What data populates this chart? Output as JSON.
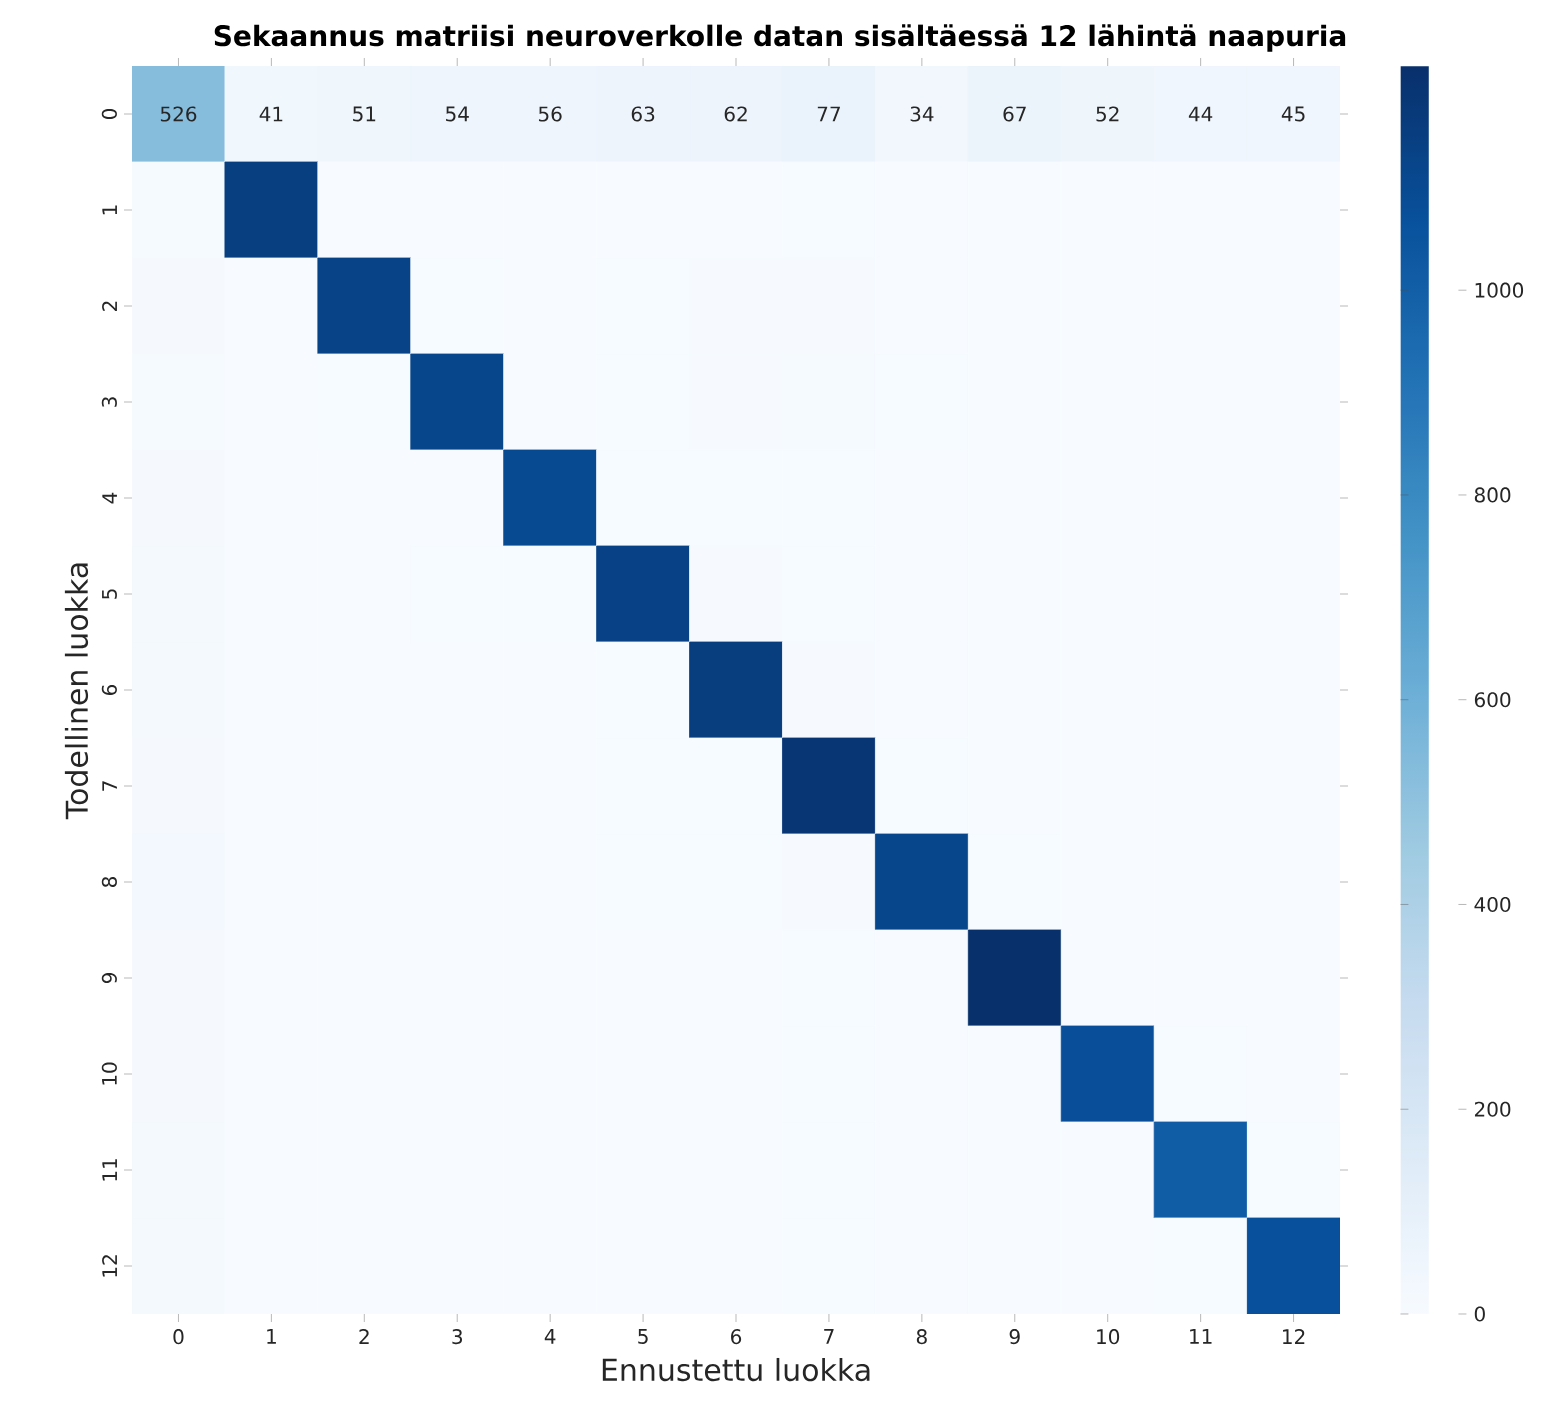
{
  "chart_data": {
    "type": "heatmap",
    "title": "Sekaannus matriisi neuroverkolle datan sisältäessä 12 lähintä naapuria",
    "xlabel": "Ennustettu luokka",
    "ylabel": "Todellinen luokka",
    "categories": [
      "0",
      "1",
      "2",
      "3",
      "4",
      "5",
      "6",
      "7",
      "8",
      "9",
      "10",
      "11",
      "12"
    ],
    "y_categories": [
      "0",
      "1",
      "2",
      "3",
      "4",
      "5",
      "6",
      "7",
      "8",
      "9",
      "10",
      "11",
      "12"
    ],
    "cells": [
      [
        526,
        41,
        51,
        54,
        56,
        63,
        62,
        77,
        34,
        67,
        52,
        44,
        45
      ],
      [
        10,
        1150,
        2,
        2,
        2,
        2,
        2,
        3,
        2,
        2,
        2,
        2,
        2
      ],
      [
        15,
        2,
        1130,
        3,
        2,
        3,
        8,
        8,
        2,
        2,
        2,
        2,
        2
      ],
      [
        12,
        2,
        3,
        1120,
        2,
        3,
        5,
        10,
        3,
        2,
        2,
        2,
        2
      ],
      [
        15,
        2,
        2,
        2,
        1100,
        3,
        3,
        3,
        2,
        2,
        2,
        2,
        2
      ],
      [
        20,
        2,
        2,
        3,
        3,
        1140,
        5,
        3,
        2,
        2,
        2,
        2,
        2
      ],
      [
        20,
        2,
        2,
        2,
        2,
        3,
        1160,
        5,
        2,
        2,
        2,
        2,
        2
      ],
      [
        15,
        2,
        2,
        2,
        2,
        3,
        3,
        1190,
        3,
        2,
        2,
        2,
        2
      ],
      [
        30,
        2,
        2,
        2,
        2,
        3,
        3,
        8,
        1120,
        3,
        2,
        2,
        2
      ],
      [
        15,
        2,
        2,
        2,
        2,
        2,
        2,
        3,
        2,
        1219,
        2,
        2,
        2
      ],
      [
        15,
        2,
        2,
        2,
        2,
        2,
        2,
        3,
        2,
        2,
        1080,
        3,
        2
      ],
      [
        20,
        2,
        2,
        2,
        2,
        2,
        2,
        3,
        2,
        2,
        2,
        1010,
        3
      ],
      [
        20,
        2,
        2,
        2,
        2,
        2,
        2,
        3,
        2,
        2,
        2,
        3,
        1070
      ]
    ],
    "cell_labels": [
      [
        "526",
        "41",
        "51",
        "54",
        "56",
        "63",
        "62",
        "77",
        "34",
        "67",
        "52",
        "44",
        "45"
      ],
      [
        null,
        null,
        null,
        null,
        null,
        null,
        null,
        null,
        null,
        null,
        null,
        null,
        null
      ],
      [
        null,
        null,
        null,
        null,
        null,
        null,
        null,
        null,
        null,
        null,
        null,
        null,
        null
      ],
      [
        null,
        null,
        null,
        null,
        null,
        null,
        null,
        null,
        null,
        null,
        null,
        null,
        null
      ],
      [
        null,
        null,
        null,
        null,
        null,
        null,
        null,
        null,
        null,
        null,
        null,
        null,
        null
      ],
      [
        null,
        null,
        null,
        null,
        null,
        null,
        null,
        null,
        null,
        null,
        null,
        null,
        null
      ],
      [
        null,
        null,
        null,
        null,
        null,
        null,
        null,
        null,
        null,
        null,
        null,
        null,
        null
      ],
      [
        null,
        null,
        null,
        null,
        null,
        null,
        null,
        null,
        null,
        null,
        null,
        null,
        null
      ],
      [
        null,
        null,
        null,
        null,
        null,
        null,
        null,
        null,
        null,
        null,
        null,
        null,
        null
      ],
      [
        null,
        null,
        null,
        null,
        null,
        null,
        null,
        null,
        null,
        null,
        null,
        null,
        null
      ],
      [
        null,
        null,
        null,
        null,
        null,
        null,
        null,
        null,
        null,
        null,
        null,
        null,
        null
      ],
      [
        null,
        null,
        null,
        null,
        null,
        null,
        null,
        null,
        null,
        null,
        null,
        null,
        null
      ],
      [
        null,
        null,
        null,
        null,
        null,
        null,
        null,
        null,
        null,
        null,
        null,
        null,
        null
      ]
    ],
    "clim": [
      0,
      1219
    ],
    "cticks": [
      0,
      200,
      400,
      600,
      800,
      1000
    ]
  }
}
